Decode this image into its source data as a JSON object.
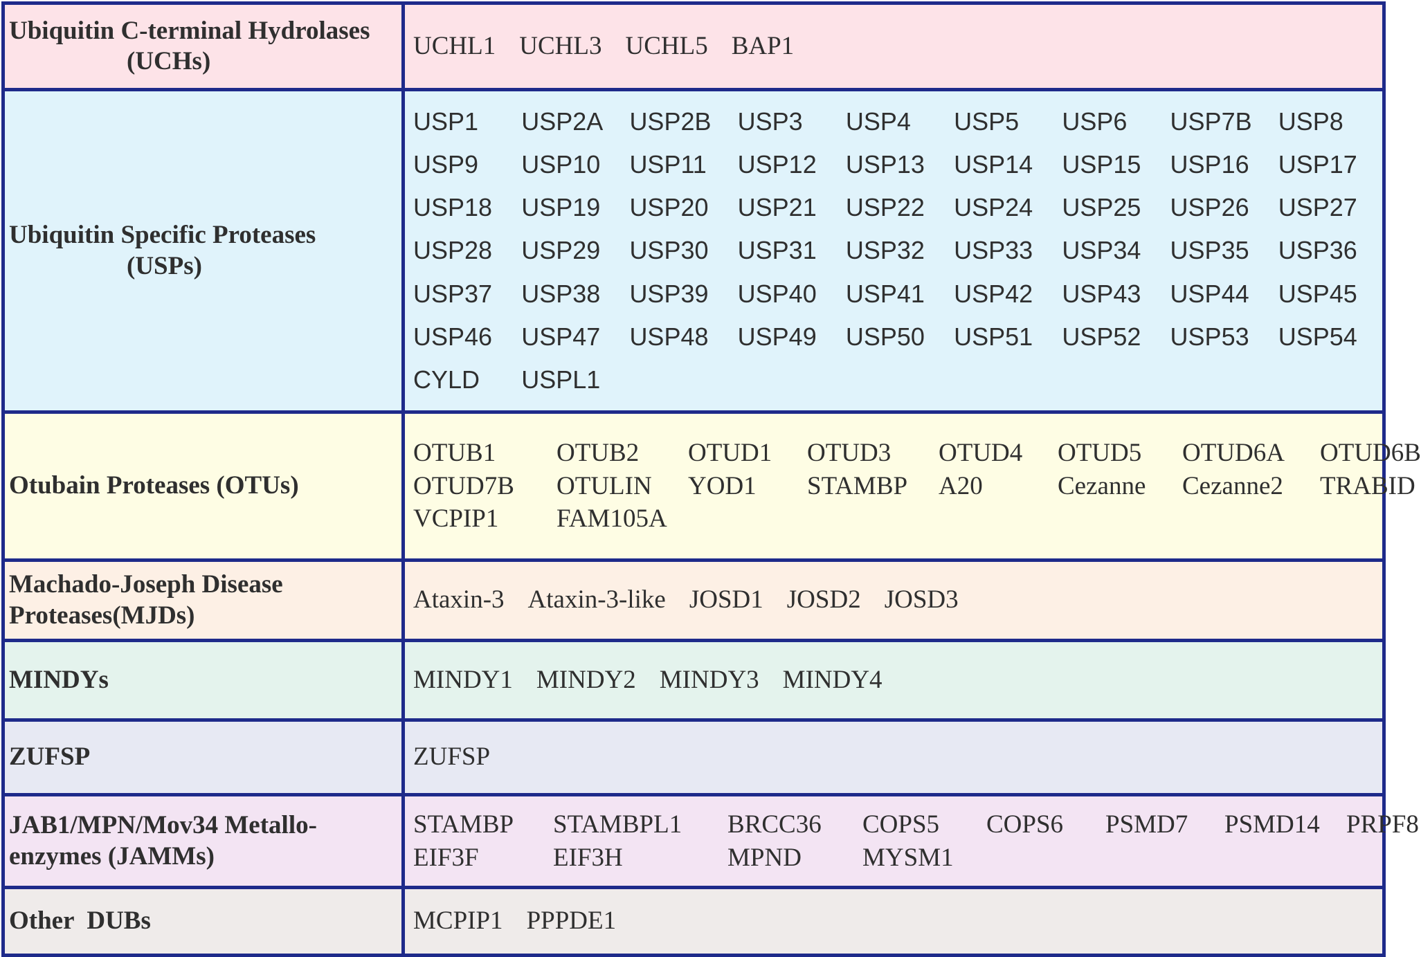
{
  "colors": {
    "border": "#1e2a8a",
    "uch_bg": "#fde3e8",
    "usp_bg": "#e0f3fb",
    "otu_bg": "#fefde4",
    "mjd_bg": "#fdf0e5",
    "mindy_bg": "#e4f3ed",
    "zufsp_bg": "#e7e9f3",
    "jamm_bg": "#f3e4f3",
    "other_bg": "#efebea"
  },
  "rows": [
    {
      "family_lines": [
        "Ubiquitin C-terminal Hydrolases",
        "(UCHs)"
      ],
      "members": [
        "UCHL1",
        "UCHL3",
        "UCHL5",
        "BAP1"
      ]
    },
    {
      "family_lines": [
        "Ubiquitin Specific Proteases",
        "(USPs)"
      ],
      "members": [
        "USP1",
        "USP2A",
        "USP2B",
        "USP3",
        "USP4",
        "USP5",
        "USP6",
        "USP7B",
        "USP8",
        "USP9",
        "USP10",
        "USP11",
        "USP12",
        "USP13",
        "USP14",
        "USP15",
        "USP16",
        "USP17",
        "USP18",
        "USP19",
        "USP20",
        "USP21",
        "USP22",
        "USP24",
        "USP25",
        "USP26",
        "USP27",
        "USP28",
        "USP29",
        "USP30",
        "USP31",
        "USP32",
        "USP33",
        "USP34",
        "USP35",
        "USP36",
        "USP37",
        "USP38",
        "USP39",
        "USP40",
        "USP41",
        "USP42",
        "USP43",
        "USP44",
        "USP45",
        "USP46",
        "USP47",
        "USP48",
        "USP49",
        "USP50",
        "USP51",
        "USP52",
        "USP53",
        "USP54",
        "CYLD",
        "USPL1"
      ]
    },
    {
      "family_lines": [
        "Otubain Proteases (OTUs)"
      ],
      "members": [
        "OTUB1",
        "OTUB2",
        "OTUD1",
        "OTUD3",
        "OTUD4",
        "OTUD5",
        "OTUD6A",
        "OTUD6B",
        "OTUD7B",
        "OTULIN",
        "YOD1",
        "STAMBP",
        "A20",
        "Cezanne",
        "Cezanne2",
        "TRABID",
        "VCPIP1",
        "FAM105A"
      ]
    },
    {
      "family_lines": [
        "Machado-Joseph Disease",
        "Proteases(MJDs)"
      ],
      "members": [
        "Ataxin-3",
        "Ataxin-3-like",
        "JOSD1",
        "JOSD2",
        "JOSD3"
      ]
    },
    {
      "family_lines": [
        "MINDYs"
      ],
      "members": [
        "MINDY1",
        "MINDY2",
        "MINDY3",
        "MINDY4"
      ]
    },
    {
      "family_lines": [
        "ZUFSP"
      ],
      "members": [
        "ZUFSP"
      ]
    },
    {
      "family_lines": [
        "JAB1/MPN/Mov34 Metallo-",
        "enzymes (JAMMs)"
      ],
      "members": [
        "STAMBP",
        "STAMBPL1",
        "BRCC36",
        "COPS5",
        "COPS6",
        "PSMD7",
        "PSMD14",
        "PRPF8",
        "EIF3F",
        "EIF3H",
        "MPND",
        "MYSM1"
      ]
    },
    {
      "family_lines": [
        "Other  DUBs"
      ],
      "members": [
        "MCPIP1",
        "PPPDE1"
      ]
    }
  ]
}
